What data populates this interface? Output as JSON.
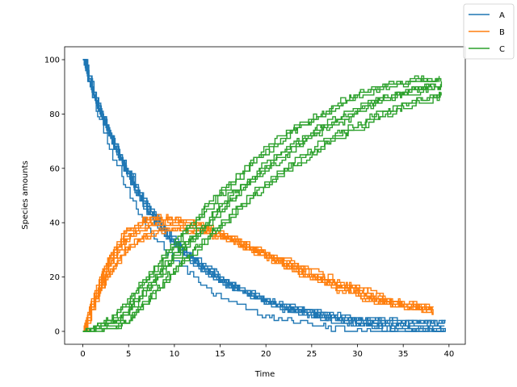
{
  "chart_data": {
    "type": "line",
    "xlabel": "Time",
    "ylabel": "Species amounts",
    "xlim": [
      -1.99,
      41.78
    ],
    "ylim": [
      -4.75,
      104.75
    ],
    "xticks": [
      0,
      5,
      10,
      15,
      20,
      25,
      30,
      35,
      40
    ],
    "yticks": [
      0,
      20,
      40,
      60,
      80,
      100
    ],
    "xtick_labels": [
      "0",
      "5",
      "10",
      "15",
      "20",
      "25",
      "30",
      "35",
      "40"
    ],
    "ytick_labels": [
      "0",
      "20",
      "40",
      "60",
      "80",
      "100"
    ],
    "legend_position": "top-right (outside axes)",
    "grid": false,
    "x": [
      0,
      1,
      2,
      3,
      4,
      5,
      6,
      7,
      8,
      9,
      10,
      12,
      14,
      16,
      18,
      20,
      22,
      24,
      26,
      28,
      30,
      32,
      34,
      36,
      38,
      40
    ],
    "trajectories_per_species": 10,
    "series": [
      {
        "name": "A",
        "color": "#1f77b4",
        "values": [
          100,
          88,
          79,
          71,
          64,
          57,
          51,
          45,
          40,
          36,
          32,
          26,
          21,
          17,
          14,
          11,
          9,
          7,
          6,
          5,
          4,
          3,
          3,
          2,
          2,
          2
        ]
      },
      {
        "name": "B",
        "color": "#ff7f0e",
        "values": [
          0,
          11,
          19,
          26,
          31,
          35,
          37,
          39,
          40,
          40,
          40,
          39,
          37,
          34,
          31,
          28,
          25,
          22,
          19,
          17,
          14,
          12,
          10,
          9,
          8,
          7
        ]
      },
      {
        "name": "C",
        "color": "#2ca02c",
        "values": [
          0,
          1,
          2,
          3,
          5,
          8,
          12,
          16,
          20,
          24,
          28,
          35,
          42,
          49,
          55,
          61,
          66,
          71,
          75,
          78,
          82,
          85,
          87,
          89,
          90,
          91
        ]
      }
    ]
  }
}
